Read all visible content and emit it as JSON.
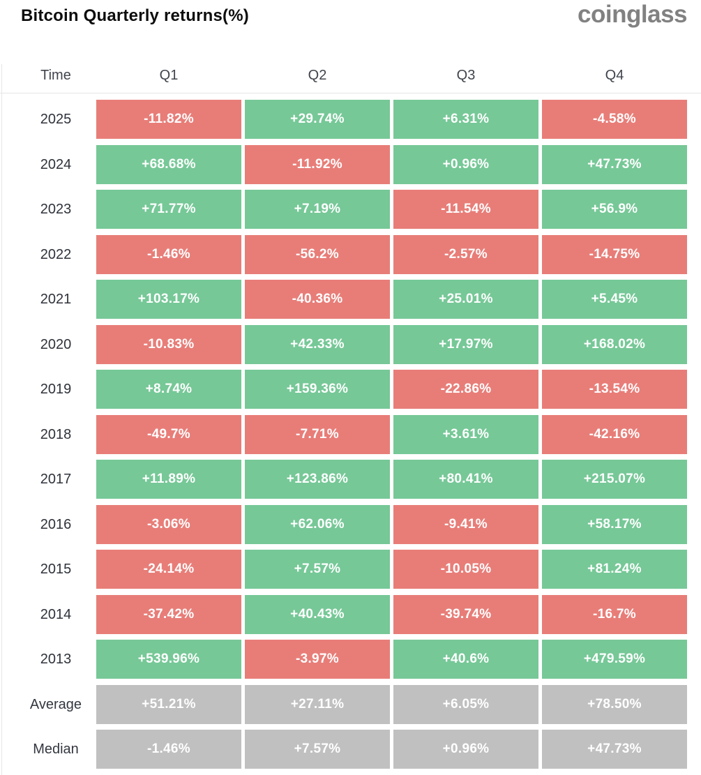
{
  "header": {
    "title": "Bitcoin Quarterly returns(%)",
    "logo_text": "coinglass"
  },
  "colors": {
    "positive": "#76c897",
    "negative": "#e87d78",
    "summary": "#c0c0c0",
    "logo": "#818181",
    "rule_line": "#e6e6e8"
  },
  "table": {
    "columns": [
      "Time",
      "Q1",
      "Q2",
      "Q3",
      "Q4"
    ],
    "rows": [
      {
        "label": "2025",
        "kind": "year",
        "values": [
          "-11.82%",
          "+29.74%",
          "+6.31%",
          "-4.58%"
        ]
      },
      {
        "label": "2024",
        "kind": "year",
        "values": [
          "+68.68%",
          "-11.92%",
          "+0.96%",
          "+47.73%"
        ]
      },
      {
        "label": "2023",
        "kind": "year",
        "values": [
          "+71.77%",
          "+7.19%",
          "-11.54%",
          "+56.9%"
        ]
      },
      {
        "label": "2022",
        "kind": "year",
        "values": [
          "-1.46%",
          "-56.2%",
          "-2.57%",
          "-14.75%"
        ]
      },
      {
        "label": "2021",
        "kind": "year",
        "values": [
          "+103.17%",
          "-40.36%",
          "+25.01%",
          "+5.45%"
        ]
      },
      {
        "label": "2020",
        "kind": "year",
        "values": [
          "-10.83%",
          "+42.33%",
          "+17.97%",
          "+168.02%"
        ]
      },
      {
        "label": "2019",
        "kind": "year",
        "values": [
          "+8.74%",
          "+159.36%",
          "-22.86%",
          "-13.54%"
        ]
      },
      {
        "label": "2018",
        "kind": "year",
        "values": [
          "-49.7%",
          "-7.71%",
          "+3.61%",
          "-42.16%"
        ]
      },
      {
        "label": "2017",
        "kind": "year",
        "values": [
          "+11.89%",
          "+123.86%",
          "+80.41%",
          "+215.07%"
        ]
      },
      {
        "label": "2016",
        "kind": "year",
        "values": [
          "-3.06%",
          "+62.06%",
          "-9.41%",
          "+58.17%"
        ]
      },
      {
        "label": "2015",
        "kind": "year",
        "values": [
          "-24.14%",
          "+7.57%",
          "-10.05%",
          "+81.24%"
        ]
      },
      {
        "label": "2014",
        "kind": "year",
        "values": [
          "-37.42%",
          "+40.43%",
          "-39.74%",
          "-16.7%"
        ]
      },
      {
        "label": "2013",
        "kind": "year",
        "values": [
          "+539.96%",
          "-3.97%",
          "+40.6%",
          "+479.59%"
        ]
      },
      {
        "label": "Average",
        "kind": "summary",
        "values": [
          "+51.21%",
          "+27.11%",
          "+6.05%",
          "+78.50%"
        ]
      },
      {
        "label": "Median",
        "kind": "summary",
        "values": [
          "-1.46%",
          "+7.57%",
          "+0.96%",
          "+47.73%"
        ]
      }
    ]
  },
  "chart_data": {
    "type": "heatmap",
    "title": "Bitcoin Quarterly returns(%)",
    "columns": [
      "Q1",
      "Q2",
      "Q3",
      "Q4"
    ],
    "row_labels": [
      "2025",
      "2024",
      "2023",
      "2022",
      "2021",
      "2020",
      "2019",
      "2018",
      "2017",
      "2016",
      "2015",
      "2014",
      "2013",
      "Average",
      "Median"
    ],
    "values_pct": [
      [
        -11.82,
        29.74,
        6.31,
        -4.58
      ],
      [
        68.68,
        -11.92,
        0.96,
        47.73
      ],
      [
        71.77,
        7.19,
        -11.54,
        56.9
      ],
      [
        -1.46,
        -56.2,
        -2.57,
        -14.75
      ],
      [
        103.17,
        -40.36,
        25.01,
        5.45
      ],
      [
        -10.83,
        42.33,
        17.97,
        168.02
      ],
      [
        8.74,
        159.36,
        -22.86,
        -13.54
      ],
      [
        -49.7,
        -7.71,
        3.61,
        -42.16
      ],
      [
        11.89,
        123.86,
        80.41,
        215.07
      ],
      [
        -3.06,
        62.06,
        -9.41,
        58.17
      ],
      [
        -24.14,
        7.57,
        -10.05,
        81.24
      ],
      [
        -37.42,
        40.43,
        -39.74,
        -16.7
      ],
      [
        539.96,
        -3.97,
        40.6,
        479.59
      ],
      [
        51.21,
        27.11,
        6.05,
        78.5
      ],
      [
        -1.46,
        7.57,
        0.96,
        47.73
      ]
    ],
    "legend_position": "none",
    "grid": false,
    "color_rule": "positive cells green, negative cells red, Average/Median rows gray"
  }
}
